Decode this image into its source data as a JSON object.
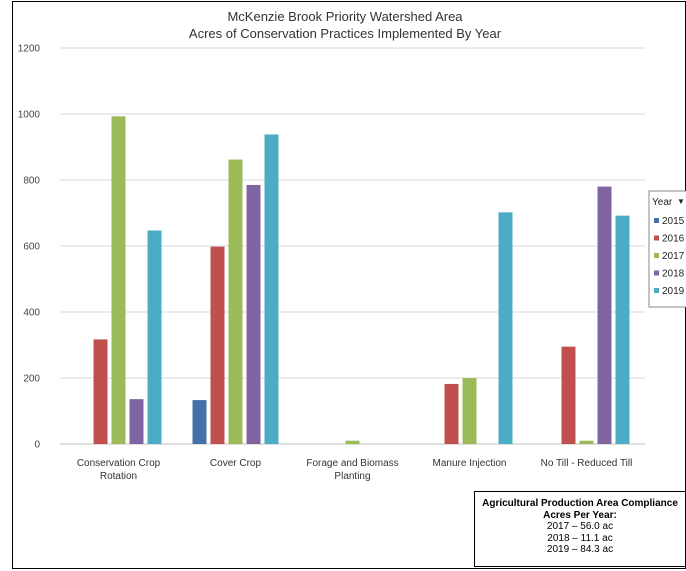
{
  "chart_data": {
    "type": "bar",
    "title": "McKenzie Brook Priority Watershed Area",
    "subtitle": "Acres of Conservation Practices Implemented By Year",
    "categories": [
      "Conservation Crop Rotation",
      "Cover Crop",
      "Forage and Biomass Planting",
      "Manure Injection",
      "No Till - Reduced Till"
    ],
    "category_lines": [
      [
        "Conservation Crop",
        "Rotation"
      ],
      [
        "Cover Crop"
      ],
      [
        "Forage and Biomass",
        "Planting"
      ],
      [
        "Manure Injection"
      ],
      [
        "No Till - Reduced Till"
      ]
    ],
    "series": [
      {
        "name": "2015",
        "color": "#4472a8",
        "values": [
          0,
          133,
          0,
          0,
          0
        ]
      },
      {
        "name": "2016",
        "color": "#c0504d",
        "values": [
          317,
          598,
          0,
          182,
          295
        ]
      },
      {
        "name": "2017",
        "color": "#9bbb59",
        "values": [
          993,
          862,
          10,
          200,
          10
        ]
      },
      {
        "name": "2018",
        "color": "#8064a2",
        "values": [
          136,
          785,
          0,
          0,
          780
        ]
      },
      {
        "name": "2019",
        "color": "#4bacc6",
        "values": [
          647,
          938,
          0,
          702,
          692
        ]
      }
    ],
    "ylim": [
      0,
      1200
    ],
    "yticks": [
      0,
      200,
      400,
      600,
      800,
      1000,
      1200
    ],
    "grid": true,
    "legend": {
      "title": "Year",
      "dropdown_glyph": "▼",
      "placement": "right"
    }
  },
  "note": {
    "title": "Agricultural Production Area Compliance",
    "subtitle": "Acres Per Year:",
    "lines": [
      "2017 –  56.0 ac",
      "2018 –  11.1 ac",
      "2019 –  84.3 ac"
    ]
  }
}
